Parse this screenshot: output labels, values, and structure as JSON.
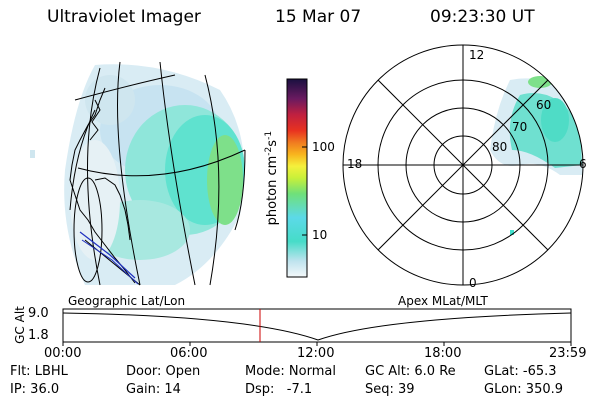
{
  "header": {
    "title": "Ultraviolet Imager",
    "date": "15 Mar 07",
    "time": "09:23:30 UT"
  },
  "colorbar": {
    "ticks": [
      "100",
      "10"
    ],
    "unit": "photon cm",
    "unit_sup1": "-2",
    "unit_mid": "s",
    "unit_sup2": "-1"
  },
  "geo_panel": {
    "caption": "Geographic Lat/Lon"
  },
  "polar_panel": {
    "caption": "Apex MLat/MLT",
    "mlt_labels": {
      "top": "12",
      "left": "18",
      "right": "6",
      "bottom": "0"
    },
    "lat_labels": [
      "60",
      "70",
      "80"
    ]
  },
  "timeline": {
    "ylabel": "GC Alt",
    "y_ticks": [
      "9.0",
      "1.8"
    ],
    "x_ticks": [
      "00:00",
      "06:00",
      "12:00",
      "18:00",
      "23:59"
    ]
  },
  "status": {
    "row1": {
      "flt": "Flt: LBHL",
      "door": "Door: Open",
      "mode": "Mode: Normal",
      "gcalt": "GC Alt: 6.0 Re",
      "glat": "GLat: -65.3"
    },
    "row2": {
      "ip": "IP: 36.0",
      "gain": "Gain: 14",
      "dsp": "Dsp:   -7.1",
      "seq": "Seq: 39",
      "glon": "GLon: 350.9"
    }
  },
  "colors": {
    "aurora_cyan": "#3fe0cc",
    "aurora_green": "#5de06a",
    "grid": "#000000",
    "marker": "#cc0000",
    "coast_blue": "#2030c0"
  }
}
